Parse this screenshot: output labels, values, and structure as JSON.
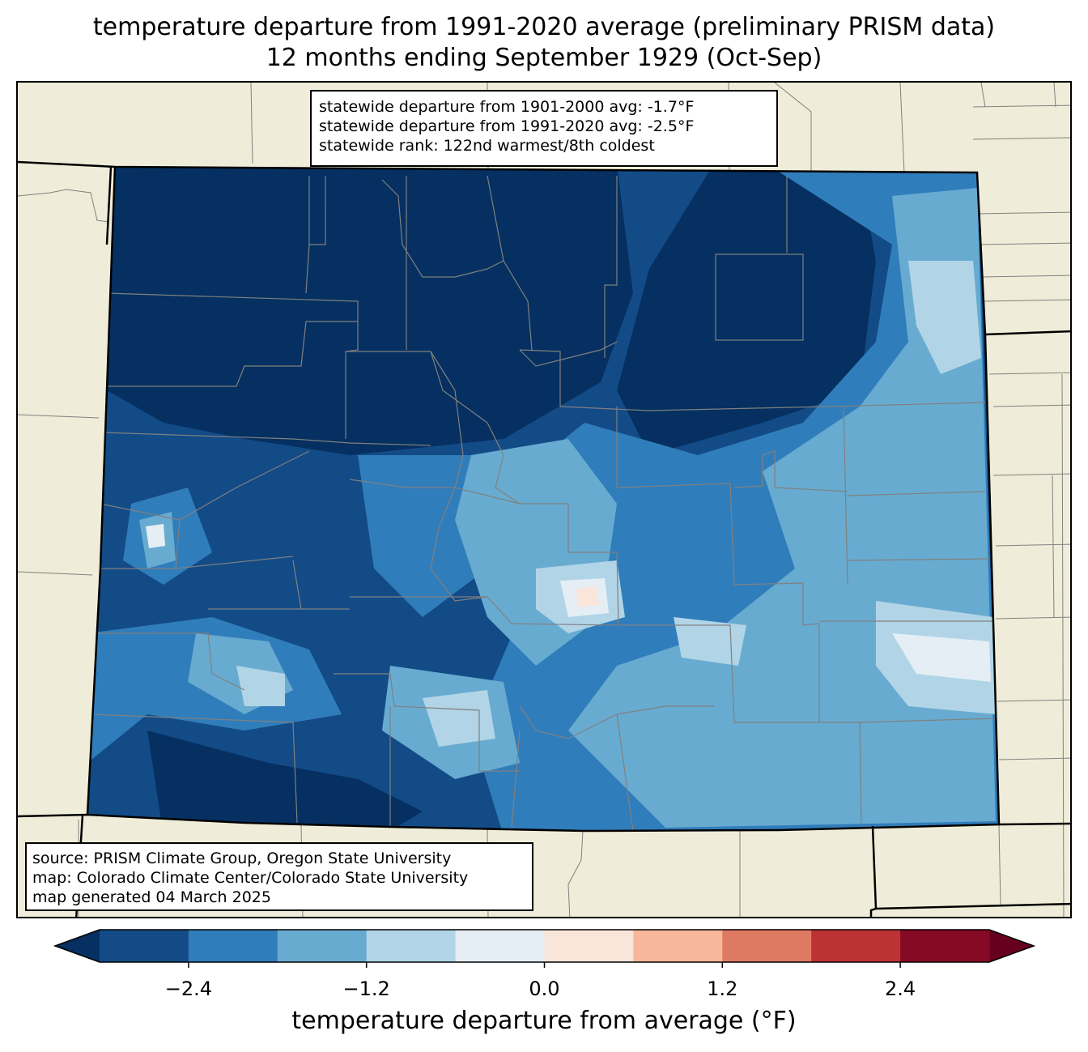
{
  "title": {
    "line1": "temperature departure from 1991-2020 average (preliminary PRISM data)",
    "line2": "12 months ending September 1929 (Oct-Sep)"
  },
  "stats": {
    "line1": "statewide departure from 1901-2000 avg: -1.7°F",
    "line2": "statewide departure from 1991-2020 avg: -2.5°F",
    "line3": "statewide rank: 122nd warmest/8th coldest"
  },
  "source": {
    "line1": "source: PRISM Climate Group, Oregon State University",
    "line2": "map: Colorado Climate Center/Colorado State University",
    "line3": "map generated 04 March 2025"
  },
  "colorbar": {
    "label": "temperature departure from average (°F)",
    "ticks": [
      "−2.4",
      "−1.2",
      "0.0",
      "1.2",
      "2.4"
    ],
    "tick_values": [
      -2.4,
      -1.2,
      0.0,
      1.2,
      2.4
    ],
    "bin_edges": [
      -3.0,
      -2.4,
      -1.8,
      -1.2,
      -0.6,
      0.0,
      0.6,
      1.2,
      1.8,
      2.4,
      3.0
    ],
    "bin_colors": [
      "#134b87",
      "#307dbb",
      "#68abd0",
      "#b1d5e7",
      "#e5eef4",
      "#fae5da",
      "#f7b79a",
      "#df7a62",
      "#bd3335",
      "#870a24"
    ],
    "under_color": "#053061",
    "over_color": "#67001f"
  },
  "legend_colors": {
    "land": "#efedd9",
    "county_border": "#808080",
    "state_border": "#000000"
  }
}
